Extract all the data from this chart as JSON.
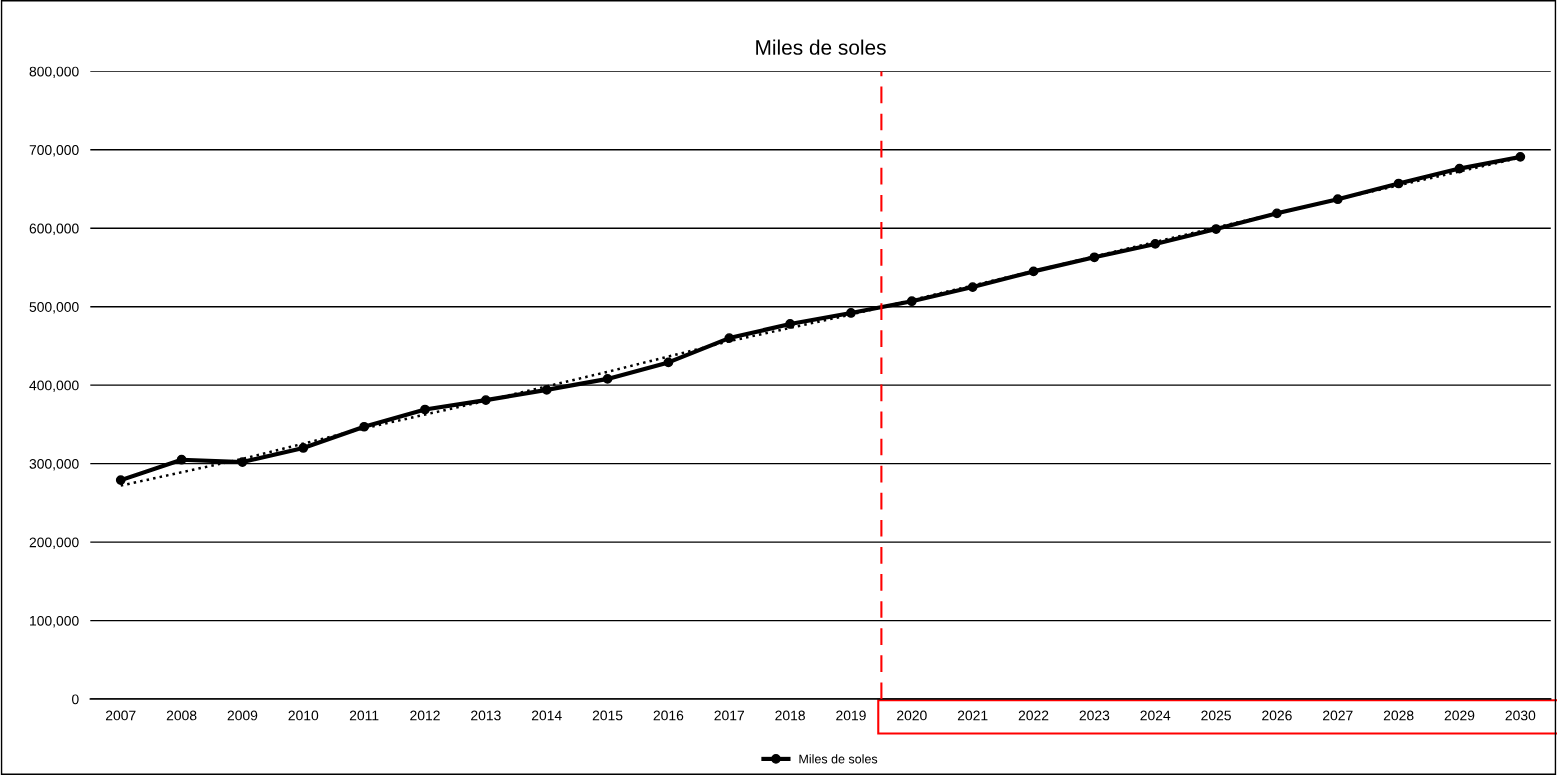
{
  "chart_data": {
    "type": "line",
    "title": "Miles de soles",
    "x": [
      2007,
      2008,
      2009,
      2010,
      2011,
      2012,
      2013,
      2014,
      2015,
      2016,
      2017,
      2018,
      2019,
      2020,
      2021,
      2022,
      2023,
      2024,
      2025,
      2026,
      2027,
      2028,
      2029,
      2030
    ],
    "series": [
      {
        "name": "Miles de soles",
        "color": "#000000",
        "marker": "circle",
        "line_style": "solid",
        "values": [
          279000,
          305000,
          302000,
          320000,
          347000,
          369000,
          381000,
          394000,
          408000,
          429000,
          460000,
          478000,
          492000,
          507000,
          525000,
          545000,
          563000,
          580000,
          599000,
          619000,
          637000,
          657000,
          676000,
          691000
        ]
      },
      {
        "type": "line",
        "color": "#000000",
        "marker": "none",
        "line_style": "dotted",
        "x": [
          2007,
          2009,
          2011,
          2013,
          2015,
          2017,
          2019,
          2021,
          2023,
          2025,
          2027,
          2030
        ],
        "values": [
          272000,
          306000,
          345000,
          380000,
          417000,
          456000,
          490000,
          527000,
          564000,
          601000,
          637000,
          690000
        ]
      }
    ],
    "xlim": [
      2006.5,
      2030.5
    ],
    "xticks": [
      2007,
      2008,
      2009,
      2010,
      2011,
      2012,
      2013,
      2014,
      2015,
      2016,
      2017,
      2018,
      2019,
      2020,
      2021,
      2022,
      2023,
      2024,
      2025,
      2026,
      2027,
      2028,
      2029,
      2030
    ],
    "ylim": [
      0,
      800000
    ],
    "yticks": [
      0,
      {
        "value": 100000,
        "label": "100,000"
      },
      {
        "value": 200000,
        "label": "200,000"
      },
      {
        "value": 300000,
        "label": "300,000"
      },
      {
        "value": 400000,
        "label": "400,000"
      },
      {
        "value": 500000,
        "label": "500,000"
      },
      {
        "value": 600000,
        "label": "600,000"
      },
      {
        "value": 700000,
        "label": "700,000"
      },
      {
        "value": 800000,
        "label": "800,000"
      }
    ],
    "ref_lines": [
      {
        "axis": "x",
        "value": 2019.5,
        "color": "#ff0000",
        "line_style": "dashed"
      }
    ],
    "grid": "y",
    "legend": "bottom"
  }
}
